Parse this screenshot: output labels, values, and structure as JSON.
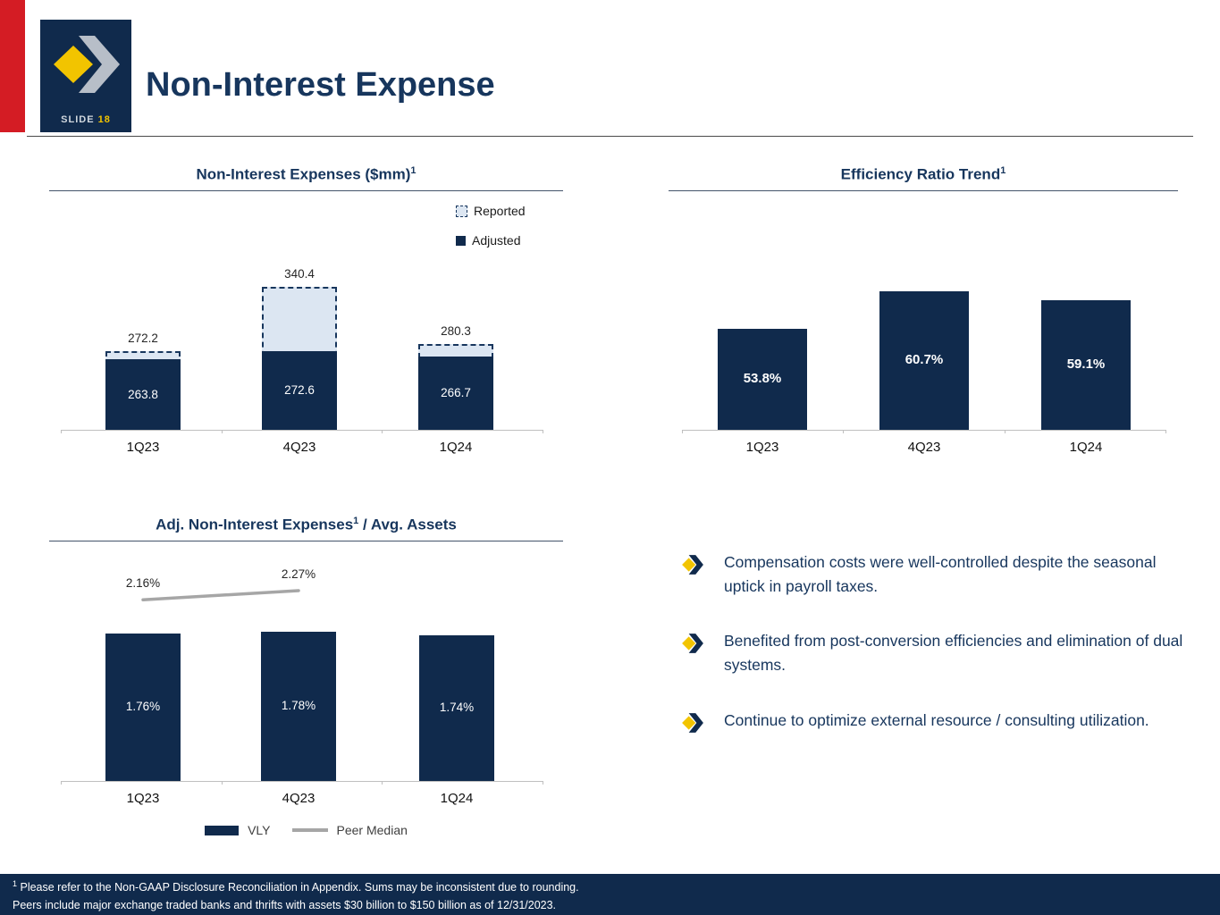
{
  "slide": {
    "label": "SLIDE",
    "number": "18",
    "title": "Non-Interest Expense"
  },
  "colors": {
    "navy": "#102a4c",
    "navy_text": "#17365d",
    "red": "#d41c24",
    "yellow": "#f2c400",
    "light_blue": "#dce6f2",
    "gray_line": "#a6a6a6"
  },
  "chart_data": [
    {
      "type": "bar",
      "title": "Non-Interest Expenses ($mm)",
      "title_sup": "1",
      "title_post": "",
      "categories": [
        "1Q23",
        "4Q23",
        "1Q24"
      ],
      "series": [
        {
          "name": "Reported",
          "values": [
            272.2,
            340.4,
            280.3
          ],
          "labels": [
            "272.2",
            "340.4",
            "280.3"
          ]
        },
        {
          "name": "Adjusted",
          "values": [
            263.8,
            272.6,
            266.7
          ],
          "labels": [
            "263.8",
            "272.6",
            "266.7"
          ]
        }
      ],
      "ylim": [
        190,
        360
      ],
      "xlabel": "",
      "ylabel": "",
      "grid": false,
      "legend_position": "top-right"
    },
    {
      "type": "bar",
      "title": "Efficiency Ratio Trend",
      "title_sup": "1",
      "title_post": "",
      "categories": [
        "1Q23",
        "4Q23",
        "1Q24"
      ],
      "series": [
        {
          "name": "Efficiency Ratio",
          "values": [
            53.8,
            60.7,
            59.1
          ],
          "labels": [
            "53.8%",
            "60.7%",
            "59.1%"
          ]
        }
      ],
      "ylim": [
        35,
        65
      ],
      "xlabel": "",
      "ylabel": "",
      "grid": false,
      "legend_position": "none"
    },
    {
      "type": "bar+line",
      "title": "Adj. Non-Interest Expenses",
      "title_sup": "1",
      "title_post": " / Avg. Assets",
      "categories": [
        "1Q23",
        "4Q23",
        "1Q24"
      ],
      "series": [
        {
          "name": "VLY",
          "kind": "bar",
          "values": [
            1.76,
            1.78,
            1.74
          ],
          "labels": [
            "1.76%",
            "1.78%",
            "1.74%"
          ]
        },
        {
          "name": "Peer Median",
          "kind": "line",
          "values": [
            2.16,
            2.27,
            null
          ],
          "labels": [
            "2.16%",
            "2.27%",
            ""
          ]
        }
      ],
      "ylim": [
        0,
        2.6
      ],
      "xlabel": "",
      "ylabel": "",
      "grid": false,
      "legend_position": "bottom"
    }
  ],
  "bullets": [
    "Compensation costs were well-controlled despite the seasonal uptick in payroll taxes.",
    "Benefited from post-conversion efficiencies and elimination of dual systems.",
    "Continue to optimize external resource / consulting utilization."
  ],
  "footer": {
    "sup": "1",
    "line1": " Please refer to the Non-GAAP Disclosure Reconciliation in Appendix. Sums may be inconsistent due to rounding.",
    "line2": "Peers include major exchange traded banks and thrifts with assets $30 billion to $150 billion as of 12/31/2023."
  }
}
